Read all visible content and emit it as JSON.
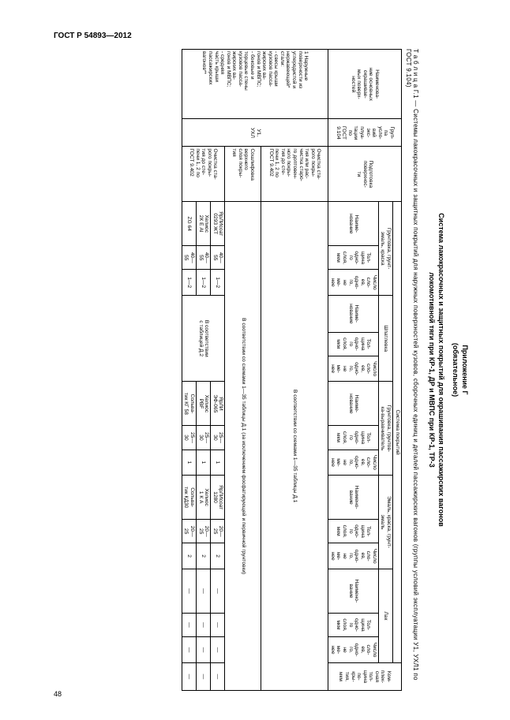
{
  "doc_header": "ГОСТ Р 54893—2012",
  "annex_title": "Приложение Г",
  "annex_sub": "(обязательное)",
  "sys_title_l1": "Система лакокрасочных и защитных покрытий для окрашивания пассажирских вагонов",
  "sys_title_l2": "локомотивной тяги при КР-1, ДР и МВПС при КР-1, ТР-3",
  "tbl_caption": "Т а б л и ц а  Г.1 — Системы лакокрасочных и защитных покрытий для наружных поверхностей кузовов, сборочных единиц и деталей пассажирских вагонов (группы условий эксплуатации У1, УХЛ1 по ГОСТ 9.104)",
  "h": {
    "c1": "Наименова-\nние основных\nокрашивае-\nмых поверх-\nностей",
    "c2": "Груп-\nпа\nусло-\nвий\nэкс-\nплуа-\nтации\nпо\nГОСТ\n9.104",
    "c3": "Подготовка\nповерхнос-\nти",
    "sys": "Система покрытий",
    "g1": "Грунтовка, грунт-\nэмаль, краска",
    "g2": "Шпатлевка",
    "g3": "Грунтовка, грунтов-\nка-выравниватель",
    "g4": "Эмаль, краска, грунт-\nэмаль",
    "g5": "Лак",
    "k": "Ком-\nплек-\nсная\nтол-\nщина\nпо-\nкры-\nтия,\nмкм",
    "sub_name": "Наиме-\nнование",
    "sub_name2": "Наимено-\nвание",
    "sub_t": "Тол-\nщина\nодно-\nго\nслоя,\nмкм",
    "sub_n": "Число\nсло-\nев,\nодно-\nго,\nне\nме-\nнее"
  },
  "r1": {
    "name": "1 Наружные\nповерхности из\nуглеродистой и\nнержавеющей*\nстали:\n- свесы крыши\nкузовов пасса-\nжирских ва-\nгонов и МВПС;\n- боковые и\nторцевые стены\nкузовов пасса-\nжирских ва-\nгонов и МВПС;\n- средняя\nчасть крыши\nпассажирских\nвагонов**",
    "grp": "У1,\nУХЛ",
    "prep1": "Очистка ста-\nрого покры-\nтия или рас-\nчистка старо-\nго доптовен-\nного покры-\nтия до сте-\nпени 1, 2 по\nГОСТ 9.402",
    "prep2": "Сошлифовка\nверхнего\nслоя покры-\nтия",
    "prep3": "Очистка ста-\nрого покры-\nтия до сте-\nпени 1, 2 по\nГОСТ 9.402",
    "body1": "В соответствии со схемами 1—35 таблицы Д.1",
    "body2": "В соответствии со схемами 1—35 таблицы Д.1 (за исключением фосфатирующей и первичной грунтовки)"
  },
  "r_a": {
    "g1": "ЯрЛИсоат\n0293 ЖТ",
    "t1": "40—\n55",
    "n1": "1—2",
    "sp": "В соответствии\nс таблицей Д.2",
    "g3": "ЯрЛИ\nЭФ-065",
    "t3": "25—\n30",
    "n3": "1",
    "g4": "ЯрЛИсоат\n1280",
    "t4": "20—\n25",
    "n4": "2",
    "g5": "—",
    "t5": "—",
    "n5": "—",
    "k": "—"
  },
  "r_b": {
    "g1": "Хелиос\n2К Е АI",
    "t1": "40—\n55",
    "n1": "1—2",
    "g3": "Хелиос\nPBF",
    "t3": "25—\n30",
    "n3": "1",
    "g4": "Хелиос\n1 К А",
    "t4": "20—\n25",
    "n4": "2",
    "g5": "—",
    "t5": "—",
    "n5": "—",
    "k": "—"
  },
  "r_c": {
    "g1": "ZG 64",
    "t1": "40—\n55",
    "n1": "1—2",
    "g3": "Сольва-\nтик КГ 58",
    "t3": "25—\n30",
    "n3": "1",
    "g4": "Сольва-\nтик КД30",
    "t4": "20—\n25",
    "n4": "2",
    "g5": "—",
    "t5": "—",
    "n5": "—",
    "k": "—"
  },
  "page_num": "48"
}
